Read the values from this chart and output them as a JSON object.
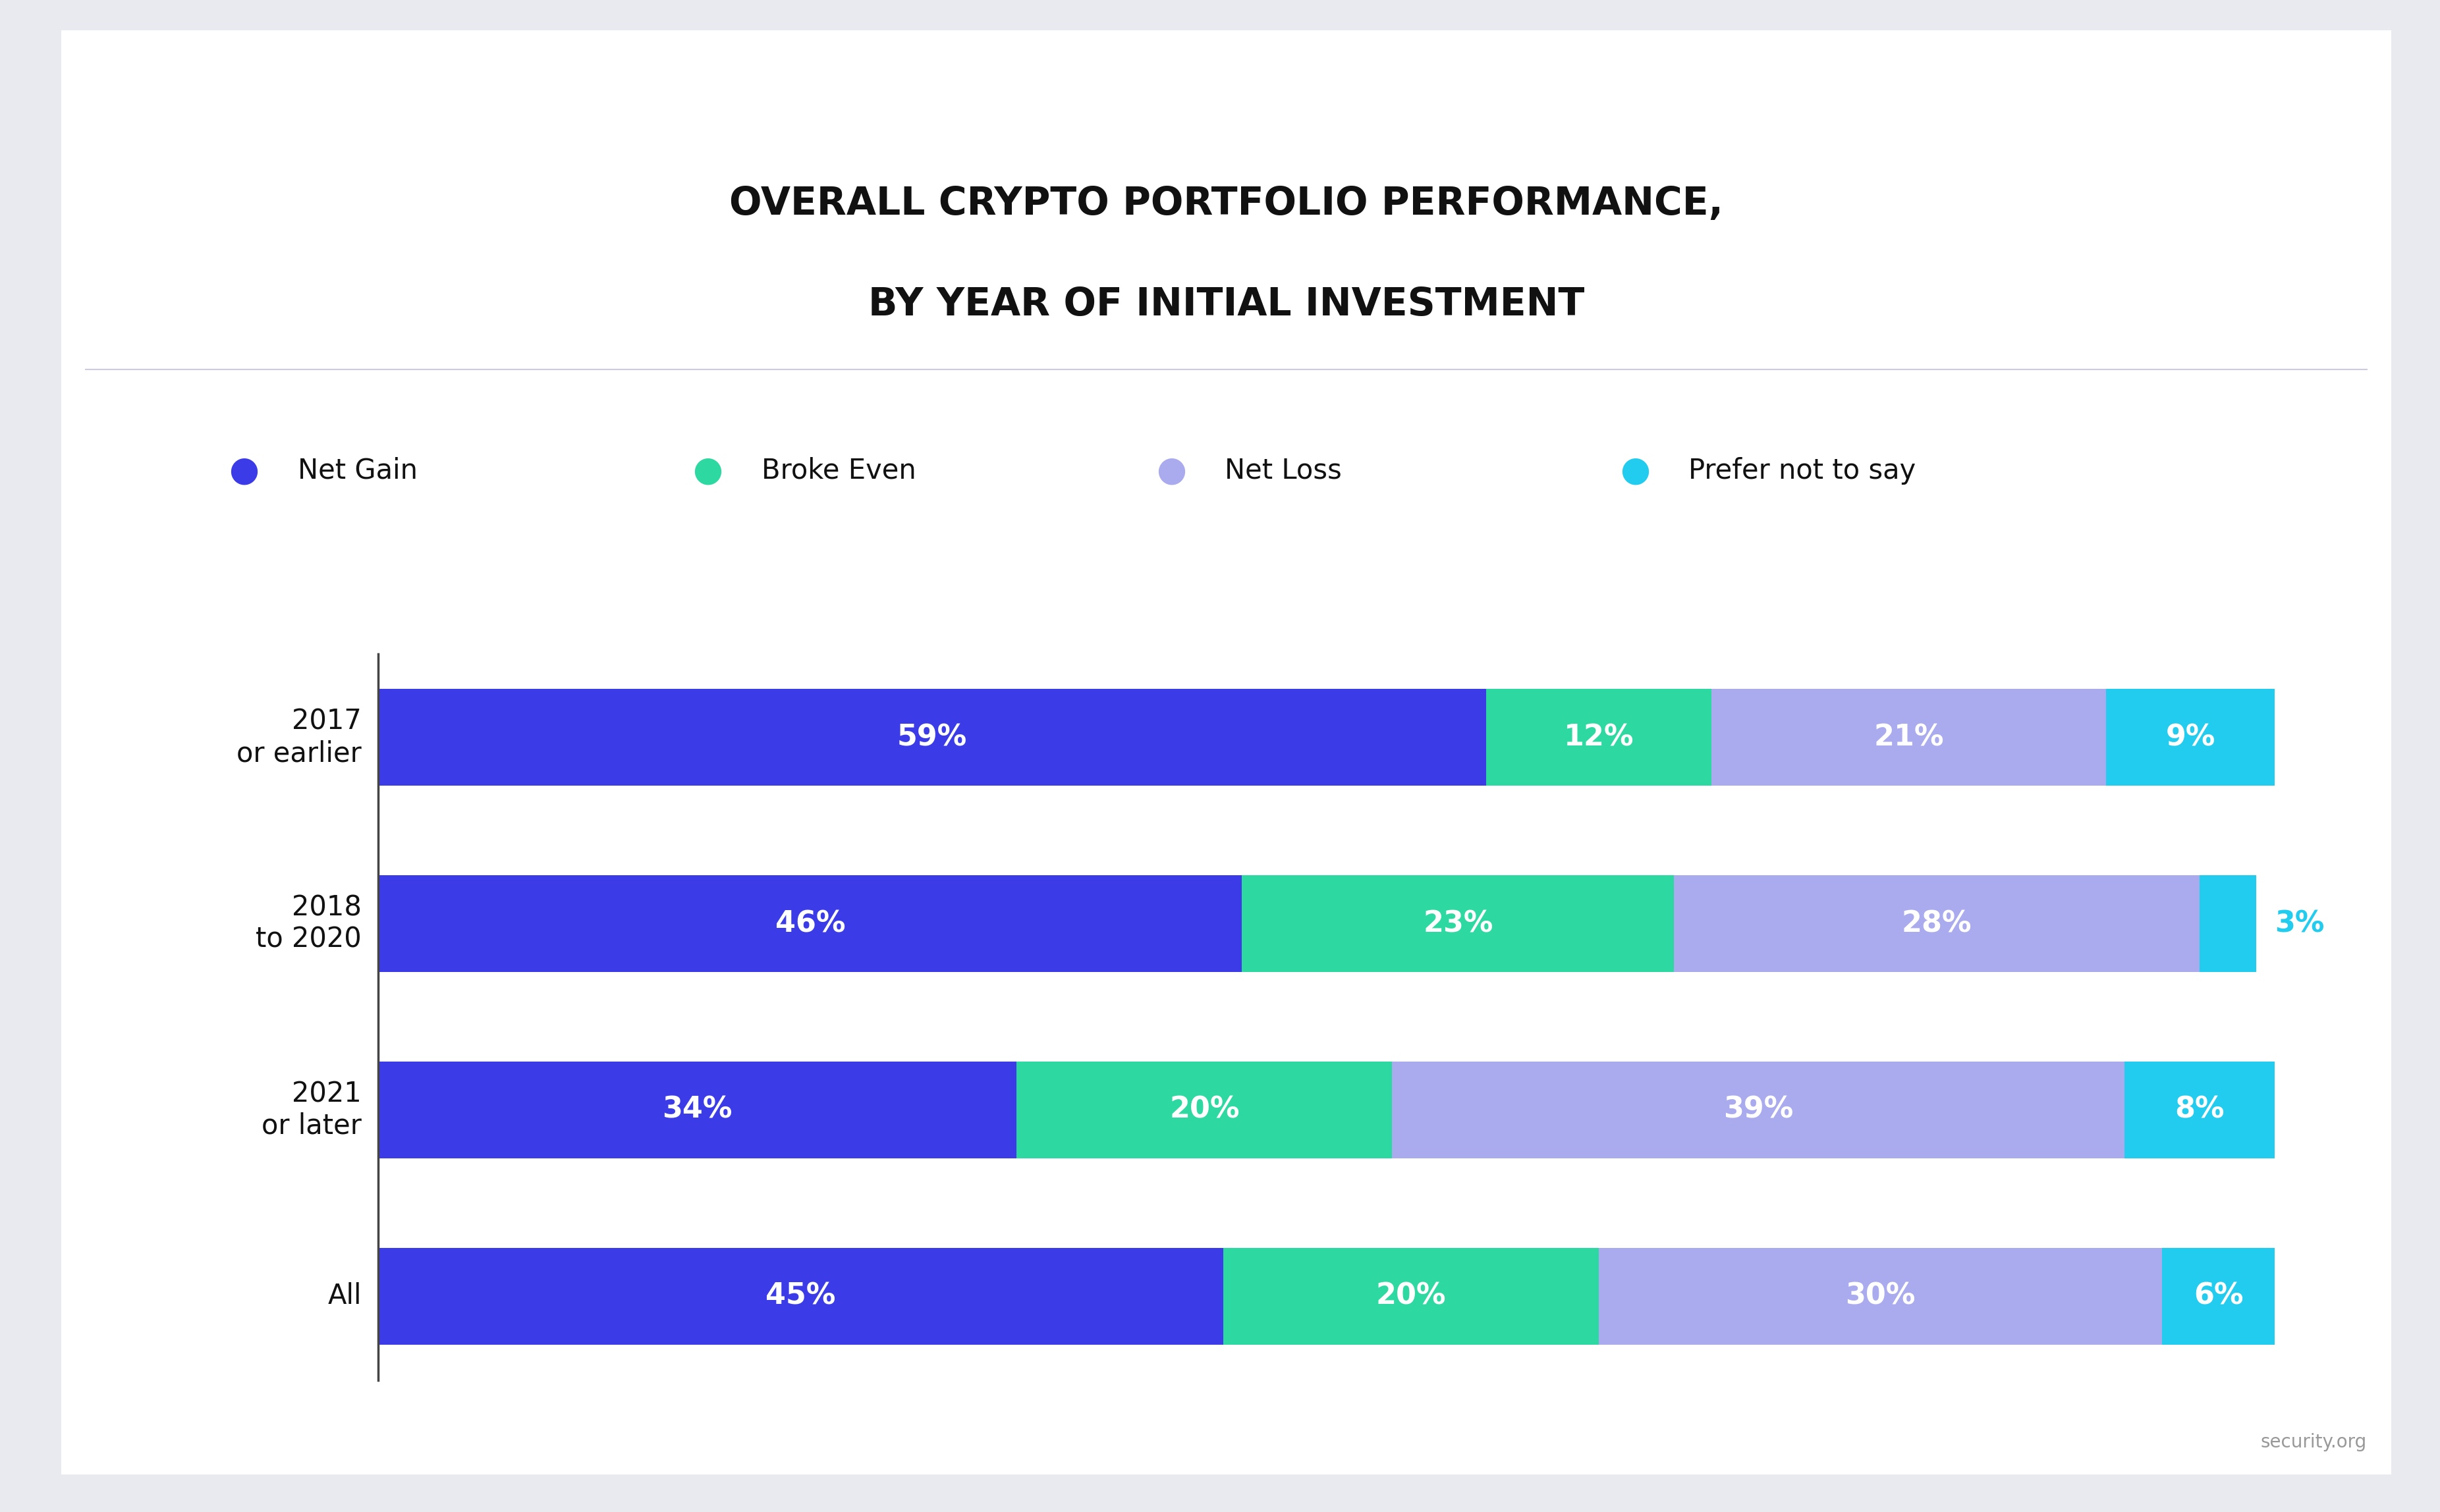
{
  "title_line1": "OVERALL CRYPTO PORTFOLIO PERFORMANCE,",
  "title_line2": "BY YEAR OF INITIAL INVESTMENT",
  "categories": [
    "2017\nor earlier",
    "2018\nto 2020",
    "2021\nor later",
    "All"
  ],
  "segment_names": [
    "Net Gain",
    "Broke Even",
    "Net Loss",
    "Prefer not to say"
  ],
  "values": [
    [
      59,
      12,
      21,
      9
    ],
    [
      46,
      23,
      28,
      3
    ],
    [
      34,
      20,
      39,
      8
    ],
    [
      45,
      20,
      30,
      6
    ]
  ],
  "bar_colors": [
    "#3B3CE8",
    "#2DD9A0",
    "#AAAAEE",
    "#22CCEE"
  ],
  "label_colors": [
    [
      "#FFFFFF",
      "#FFFFFF",
      "#FFFFFF",
      "#FFFFFF"
    ],
    [
      "#FFFFFF",
      "#FFFFFF",
      "#FFFFFF",
      "#22CCEE"
    ],
    [
      "#FFFFFF",
      "#FFFFFF",
      "#FFFFFF",
      "#FFFFFF"
    ],
    [
      "#FFFFFF",
      "#FFFFFF",
      "#FFFFFF",
      "#FFFFFF"
    ]
  ],
  "outer_bg": "#E8EAF0",
  "card_bg": "#FFFFFF",
  "title_color": "#111111",
  "ytick_color": "#111111",
  "separator_color": "#CCCCDD",
  "watermark_color": "#999999",
  "title_fontsize": 42,
  "label_fontsize": 32,
  "legend_fontsize": 30,
  "ytick_fontsize": 30,
  "bar_height": 0.52,
  "xlim": [
    0,
    102
  ],
  "watermark": "security.org"
}
